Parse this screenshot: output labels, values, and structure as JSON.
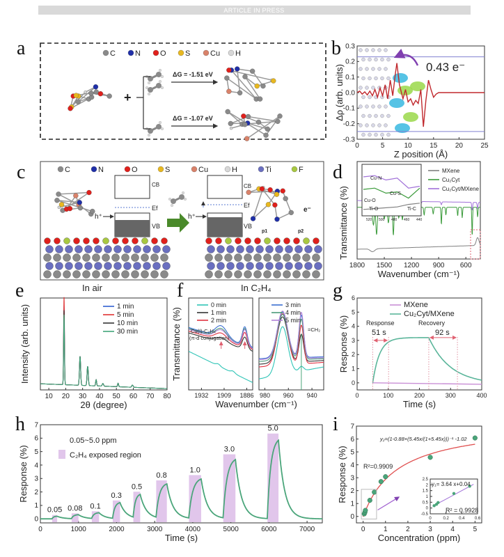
{
  "header": {
    "banner": "ARTICLE IN PRESS"
  },
  "panels": {
    "a": {
      "label": "a",
      "legend": [
        "C",
        "N",
        "O",
        "S",
        "Cu",
        "H"
      ],
      "dg1": "ΔG = -1.51 eV",
      "dg2": "ΔG = -1.07 eV",
      "plus": "+"
    },
    "b": {
      "label": "b",
      "annotation": "0.43 e⁻"
    },
    "c": {
      "label": "c",
      "legend": [
        "C",
        "N",
        "O",
        "S",
        "Cu",
        "H",
        "Ti",
        "F"
      ],
      "cb": "CB",
      "vb": "VB",
      "ef": "Ef",
      "hplus": "h⁺",
      "eminus": "e⁻",
      "p1": "p1",
      "p2": "p2",
      "air": "In air",
      "c2h4": "In C₂H₄"
    },
    "d": {
      "label": "d",
      "inset_labels": [
        "Cu-N",
        "Cu-S",
        "Cu-O",
        "Ti-O",
        "Ti-C"
      ],
      "inset_ticks": [
        520,
        500,
        480,
        460,
        440
      ]
    },
    "e": {
      "label": "e"
    },
    "f": {
      "label": "f",
      "ann1": "Cu(I)-C₂H₄",
      "ann2": "(π-d conjugation)",
      "ann3": "=CH₂"
    },
    "g": {
      "label": "g",
      "response": "Response",
      "recovery": "Recovery",
      "t_resp": "51 s",
      "t_rec": "92 s"
    },
    "h": {
      "label": "h",
      "range": "0.05~5.0 ppm",
      "legend_region": "C₂H₄ exposed region"
    },
    "i": {
      "label": "i",
      "fit2": "y₂=(1-0.88×(5.45x/(1+5.45x)))⁻¹ -1.02",
      "r2_fit2": "R²=0.9909",
      "fit1": "y₁= 3.64 x+0.04",
      "r2_fit1": "R² = 0.9928"
    }
  },
  "colors": {
    "C": "#8a8a8a",
    "N": "#1f2fa8",
    "O": "#e0201c",
    "S": "#e8b820",
    "Cu": "#d9826a",
    "H": "#d8d8d8",
    "Ti": "#6a6fc0",
    "F": "#a8c840",
    "green": "#4aa57a",
    "purple": "#c8a0dc",
    "red": "#c8282d"
  },
  "chart_data": [
    {
      "id": "b",
      "type": "line",
      "xlabel": "Z position (Å)",
      "ylabel": "Δρ (arb. units)",
      "xlim": [
        0,
        25
      ],
      "ylim": [
        -0.3,
        0.3
      ],
      "xticks": [
        0,
        5,
        10,
        15,
        20,
        25
      ],
      "yticks": [
        -0.3,
        -0.2,
        -0.1,
        0.0,
        0.1,
        0.2,
        0.3
      ],
      "hlines": [
        0.23,
        -0.25
      ],
      "series": [
        {
          "name": "Δρ",
          "color": "#c0282d",
          "points": [
            [
              0,
              0
            ],
            [
              0.5,
              0.01
            ],
            [
              1,
              -0.01
            ],
            [
              1.5,
              0.005
            ],
            [
              2,
              -0.015
            ],
            [
              2.5,
              0.01
            ],
            [
              3,
              -0.02
            ],
            [
              3.5,
              0.02
            ],
            [
              4,
              -0.03
            ],
            [
              4.5,
              0.03
            ],
            [
              5,
              -0.02
            ],
            [
              5.5,
              0.05
            ],
            [
              6,
              -0.04
            ],
            [
              6.5,
              0.08
            ],
            [
              7,
              -0.02
            ],
            [
              7.5,
              0.12
            ],
            [
              7.8,
              0.19
            ],
            [
              8.3,
              0.05
            ],
            [
              9,
              -0.04
            ],
            [
              9.5,
              0.02
            ],
            [
              10,
              -0.06
            ],
            [
              10.5,
              -0.04
            ],
            [
              11,
              -0.08
            ],
            [
              11.5,
              -0.05
            ],
            [
              12,
              -0.07
            ],
            [
              12.5,
              0.02
            ],
            [
              13,
              -0.22
            ],
            [
              13.5,
              -0.05
            ],
            [
              14,
              0.08
            ],
            [
              14.5,
              0.02
            ],
            [
              15,
              -0.03
            ],
            [
              15.5,
              -0.01
            ],
            [
              16,
              0
            ],
            [
              25,
              0
            ]
          ]
        }
      ]
    },
    {
      "id": "d",
      "type": "line",
      "xlabel": "Wavenumber (cm⁻¹)",
      "ylabel": "Transmittance (%)",
      "xlim": [
        1800,
        440
      ],
      "ylim": [
        0,
        10
      ],
      "xticks": [
        1800,
        1500,
        1200,
        900,
        600
      ],
      "series": [
        {
          "name": "MXene",
          "color": "#808080",
          "base": [
            1.0,
            1.4
          ],
          "peaks": [
            [
              1630,
              -0.3,
              25
            ],
            [
              470,
              0.8,
              15
            ]
          ]
        },
        {
          "name": "Cu₂Cyt",
          "color": "#3a9a3a",
          "base": [
            5.3,
            5.3
          ],
          "peaks": [
            [
              1620,
              -1.8,
              10
            ],
            [
              1585,
              -2.8,
              8
            ],
            [
              1500,
              -1.2,
              8
            ],
            [
              1455,
              -1.6,
              8
            ],
            [
              1400,
              -2.9,
              6
            ],
            [
              1340,
              -1.1,
              6
            ],
            [
              1300,
              -1.3,
              6
            ],
            [
              1230,
              -0.8,
              6
            ],
            [
              1140,
              -0.9,
              6
            ],
            [
              1060,
              -0.8,
              5
            ],
            [
              960,
              -0.7,
              5
            ],
            [
              870,
              -1.8,
              4
            ],
            [
              820,
              -0.8,
              4
            ],
            [
              690,
              -0.9,
              4
            ],
            [
              640,
              -1.1,
              4
            ],
            [
              530,
              -3.0,
              4
            ],
            [
              470,
              -1.0,
              4
            ]
          ]
        },
        {
          "name": "Cu₂Cyt/MXene",
          "color": "#a070d8",
          "base": [
            6.0,
            5.8
          ],
          "peaks": [
            [
              1600,
              -0.4,
              12
            ],
            [
              1400,
              -0.5,
              10
            ],
            [
              1300,
              -0.3,
              8
            ],
            [
              1100,
              -0.3,
              8
            ],
            [
              870,
              -0.3,
              5
            ],
            [
              530,
              -0.8,
              5
            ],
            [
              470,
              -0.6,
              5
            ]
          ]
        }
      ]
    },
    {
      "id": "e",
      "type": "line",
      "xlabel": "2θ (degree)",
      "ylabel": "Intensity (arb. units)",
      "xlim": [
        5,
        80
      ],
      "ylim": [
        0,
        1.05
      ],
      "xticks": [
        10,
        20,
        30,
        40,
        50,
        60,
        70,
        80
      ],
      "series": [
        {
          "name": "1 min",
          "color": "#2f5fd0",
          "base": [
            0.07,
            0.015
          ],
          "peaks": [
            [
              19,
              0.9,
              0.25
            ],
            [
              28.5,
              0.33,
              0.35
            ],
            [
              33,
              0.22,
              0.35
            ],
            [
              38,
              0.07,
              0.3
            ],
            [
              42,
              0.03,
              0.4
            ],
            [
              51,
              0.04,
              0.3
            ],
            [
              59.5,
              0.025,
              0.4
            ]
          ]
        },
        {
          "name": "5 min",
          "color": "#e03030",
          "base": [
            0.07,
            0.015
          ],
          "peaks": [
            [
              19,
              1.0,
              0.25
            ],
            [
              28.5,
              0.33,
              0.35
            ],
            [
              33,
              0.22,
              0.35
            ],
            [
              38,
              0.07,
              0.3
            ],
            [
              42,
              0.03,
              0.4
            ],
            [
              51,
              0.04,
              0.3
            ],
            [
              59.5,
              0.025,
              0.4
            ]
          ]
        },
        {
          "name": "10 min",
          "color": "#333333",
          "base": [
            0.07,
            0.015
          ],
          "peaks": [
            [
              19,
              0.85,
              0.25
            ],
            [
              28.5,
              0.33,
              0.35
            ],
            [
              33,
              0.22,
              0.35
            ],
            [
              38,
              0.07,
              0.3
            ],
            [
              42,
              0.03,
              0.4
            ],
            [
              51,
              0.04,
              0.3
            ],
            [
              59.5,
              0.025,
              0.4
            ]
          ]
        },
        {
          "name": "30 min",
          "color": "#3fa57a",
          "base": [
            0.07,
            0.015
          ],
          "peaks": [
            [
              19,
              0.8,
              0.25
            ],
            [
              28.5,
              0.33,
              0.35
            ],
            [
              33,
              0.22,
              0.35
            ],
            [
              38,
              0.07,
              0.3
            ],
            [
              42,
              0.03,
              0.4
            ],
            [
              51,
              0.04,
              0.3
            ],
            [
              59.5,
              0.025,
              0.4
            ]
          ]
        }
      ]
    },
    {
      "id": "f1",
      "type": "line",
      "xlabel": "Wavenumber (cm⁻¹)",
      "ylabel": "Transmittance (%)",
      "xlim": [
        1945,
        1880
      ],
      "ylim": [
        0,
        1
      ],
      "xticks": [
        1932,
        1909,
        1886
      ],
      "series": [
        {
          "name": "0 min",
          "color": "#2ec4b6",
          "base": [
            0.42,
            0.08
          ],
          "peaks": [
            [
              1915,
              0.02,
              2
            ],
            [
              1900,
              0.02,
              2
            ]
          ]
        },
        {
          "name": "1 min",
          "color": "#333333",
          "base": [
            0.62,
            0.42
          ],
          "peaks": [
            [
              1912,
              0.05,
              6
            ],
            [
              1888,
              0.13,
              2.5
            ]
          ]
        },
        {
          "name": "2 min",
          "color": "#e03040",
          "base": [
            0.64,
            0.44
          ],
          "peaks": [
            [
              1912,
              0.08,
              6
            ],
            [
              1888,
              0.16,
              2.5
            ]
          ]
        },
        {
          "name": "3 min",
          "color": "#3a6fd0",
          "base": [
            0.68,
            0.46
          ],
          "peaks": [
            [
              1912,
              0.13,
              6
            ],
            [
              1888,
              0.2,
              2.5
            ]
          ]
        },
        {
          "name": "4 min",
          "color": "#4a9a7a",
          "base": [
            0.67,
            0.45
          ],
          "peaks": [
            [
              1912,
              0.11,
              6
            ],
            [
              1888,
              0.19,
              2.5
            ]
          ]
        },
        {
          "name": "5 min",
          "color": "#b080d8",
          "base": [
            0.66,
            0.45
          ],
          "peaks": [
            [
              1912,
              0.1,
              6
            ],
            [
              1888,
              0.18,
              2.5
            ]
          ]
        }
      ]
    },
    {
      "id": "f2",
      "type": "line",
      "xlim": [
        985,
        930
      ],
      "ylim": [
        0,
        1
      ],
      "xticks": [
        980,
        960,
        940
      ],
      "series": [
        {
          "name": "0 min",
          "color": "#2ec4b6",
          "base": [
            0.12,
            0.25
          ],
          "peaks": [
            [
              965,
              0.52,
              4.5
            ],
            [
              949,
              0.05,
              2
            ]
          ]
        },
        {
          "name": "1 min",
          "color": "#333333",
          "base": [
            0.28,
            0.32
          ],
          "peaks": [
            [
              965,
              0.5,
              4.5
            ],
            [
              949,
              0.3,
              2
            ]
          ]
        },
        {
          "name": "2 min",
          "color": "#e03040",
          "base": [
            0.25,
            0.3
          ],
          "peaks": [
            [
              965,
              0.56,
              4.5
            ],
            [
              949,
              0.42,
              2
            ]
          ]
        },
        {
          "name": "3 min",
          "color": "#3a6fd0",
          "base": [
            0.34,
            0.36
          ],
          "peaks": [
            [
              965,
              0.5,
              4.5
            ],
            [
              949,
              0.46,
              2
            ]
          ]
        },
        {
          "name": "4 min",
          "color": "#4a9a7a",
          "base": [
            0.31,
            0.34
          ],
          "peaks": [
            [
              965,
              0.5,
              4.5
            ],
            [
              949,
              0.44,
              2
            ]
          ]
        },
        {
          "name": "5 min",
          "color": "#b080d8",
          "base": [
            0.33,
            0.35
          ],
          "peaks": [
            [
              965,
              0.52,
              4.5
            ],
            [
              949,
              0.5,
              2
            ]
          ]
        }
      ]
    },
    {
      "id": "g",
      "type": "line",
      "xlabel": "Time (s)",
      "ylabel": "Response (%)",
      "xlim": [
        0,
        400
      ],
      "ylim": [
        -0.5,
        6
      ],
      "xticks": [
        0,
        100,
        200,
        300,
        400
      ],
      "yticks": [
        0,
        1,
        2,
        3,
        4,
        5,
        6
      ],
      "series": [
        {
          "name": "MXene",
          "color": "#c98fd6",
          "on": 50,
          "off": 230,
          "peak": 0,
          "baseline": [
            0,
            -0.1
          ]
        },
        {
          "name": "Cu₂Cyt/MXene",
          "color": "#5ab59a",
          "on": 50,
          "off": 230,
          "peak": 3.2,
          "tau_rise": 22,
          "tau_decay": 70,
          "end": -0.1
        }
      ],
      "markers": {
        "response_end": 101,
        "recovery_end": 322
      }
    },
    {
      "id": "h",
      "type": "line",
      "xlabel": "Time (s)",
      "ylabel": "Response (%)",
      "xlim": [
        0,
        7400
      ],
      "ylim": [
        -0.3,
        7
      ],
      "xticks": [
        0,
        1000,
        2000,
        3000,
        4000,
        5000,
        6000,
        7000
      ],
      "yticks": [
        0,
        1,
        2,
        3,
        4,
        5,
        6,
        7
      ],
      "exposures": [
        {
          "conc": "0.05",
          "start": 310,
          "end": 440,
          "peak": 0.2
        },
        {
          "conc": "0.08",
          "start": 820,
          "end": 1000,
          "peak": 0.32
        },
        {
          "conc": "0.1",
          "start": 1350,
          "end": 1540,
          "peak": 0.47
        },
        {
          "conc": "0.3",
          "start": 1900,
          "end": 2090,
          "peak": 1.25
        },
        {
          "conc": "0.5",
          "start": 2440,
          "end": 2620,
          "peak": 1.88
        },
        {
          "conc": "0.8",
          "start": 3040,
          "end": 3320,
          "peak": 2.7
        },
        {
          "conc": "1.0",
          "start": 3900,
          "end": 4220,
          "peak": 3.08
        },
        {
          "conc": "3.0",
          "start": 4800,
          "end": 5120,
          "peak": 4.58
        },
        {
          "conc": "5.0",
          "start": 5960,
          "end": 6250,
          "peak": 6.08
        }
      ]
    },
    {
      "id": "i",
      "type": "scatter",
      "xlabel": "Concentration (ppm)",
      "ylabel": "Response (%)",
      "xlim": [
        -0.3,
        5.3
      ],
      "ylim": [
        -0.5,
        7
      ],
      "xticks": [
        0,
        1,
        2,
        3,
        4,
        5
      ],
      "yticks": [
        0,
        1,
        2,
        3,
        4,
        5,
        6,
        7
      ],
      "points": [
        [
          0.05,
          0.2
        ],
        [
          0.08,
          0.32
        ],
        [
          0.1,
          0.47
        ],
        [
          0.3,
          1.25
        ],
        [
          0.5,
          1.88
        ],
        [
          0.8,
          2.7
        ],
        [
          1.0,
          3.08
        ],
        [
          3.0,
          4.58
        ],
        [
          5.0,
          6.08
        ]
      ],
      "fit": {
        "a": 0.88,
        "b": 5.45,
        "c": 1.02
      },
      "inset": {
        "xlim": [
          0,
          0.6
        ],
        "ylim": [
          -0.5,
          2.5
        ],
        "xticks": [
          0.0,
          0.2,
          0.4,
          0.6
        ],
        "yticks": [
          -0.5,
          0.0,
          0.5,
          1.0,
          1.5,
          2.0,
          2.5
        ],
        "slope": 3.64,
        "intercept": 0.04
      }
    }
  ]
}
